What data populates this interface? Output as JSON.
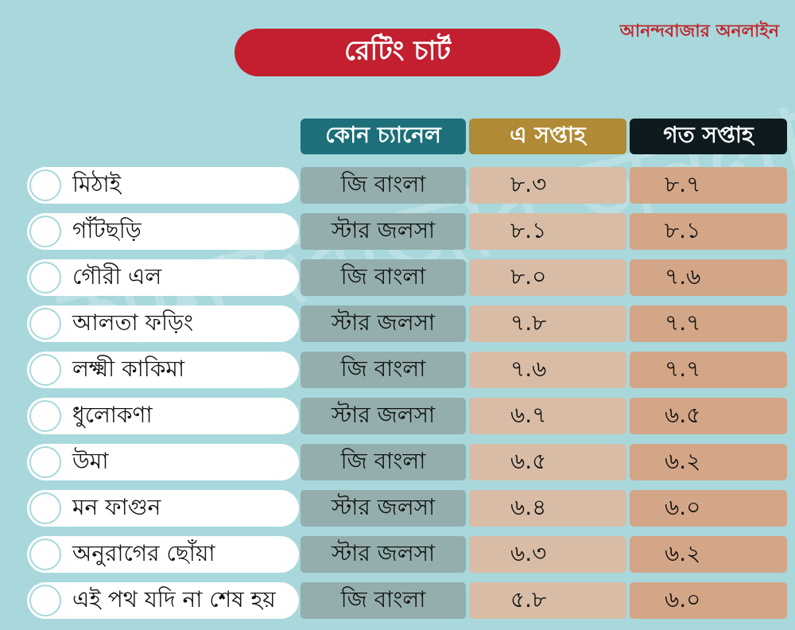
{
  "brand": "আনন্দবাজার অনলাইন",
  "title": "রেটিং চার্ট",
  "watermark": "আনন্দবাজার অনলাইন",
  "headers": {
    "channel": "কোন চ্যানেল",
    "this_week": "এ সপ্তাহ",
    "last_week": "গত সপ্তাহ"
  },
  "colors": {
    "background": "#a8d8dc",
    "title": "#c31f2e",
    "channel_header": "#1d6f7a",
    "this_week_header": "#b08a34",
    "last_week_header": "#0d1b1f"
  },
  "chart_data": {
    "type": "table",
    "title": "রেটিং চার্ট",
    "columns": [
      "কোন চ্যানেল",
      "এ সপ্তাহ",
      "গত সপ্তাহ"
    ],
    "rows": [
      {
        "show": "মিঠাই",
        "channel": "জি বাংলা",
        "this_week": "৮.৩",
        "last_week": "৮.৭"
      },
      {
        "show": "গাঁটছড়ি",
        "channel": "স্টার জলসা",
        "this_week": "৮.১",
        "last_week": "৮.১"
      },
      {
        "show": "গৌরী এল",
        "channel": "জি বাংলা",
        "this_week": "৮.০",
        "last_week": "৭.৬"
      },
      {
        "show": "আলতা ফড়িং",
        "channel": "স্টার জলসা",
        "this_week": "৭.৮",
        "last_week": "৭.৭"
      },
      {
        "show": "লক্ষ্মী কাকিমা",
        "channel": "জি বাংলা",
        "this_week": "৭.৬",
        "last_week": "৭.৭"
      },
      {
        "show": "ধুলোকণা",
        "channel": "স্টার জলসা",
        "this_week": "৬.৭",
        "last_week": "৬.৫"
      },
      {
        "show": "উমা",
        "channel": "জি বাংলা",
        "this_week": "৬.৫",
        "last_week": "৬.২"
      },
      {
        "show": "মন ফাগুন",
        "channel": "স্টার জলসা",
        "this_week": "৬.৪",
        "last_week": "৬.০"
      },
      {
        "show": "অনুরাগের ছোঁয়া",
        "channel": "স্টার জলসা",
        "this_week": "৬.৩",
        "last_week": "৬.২"
      },
      {
        "show": "এই পথ যদি না শেষ হয়",
        "channel": "জি বাংলা",
        "this_week": "৫.৮",
        "last_week": "৬.০"
      }
    ]
  }
}
